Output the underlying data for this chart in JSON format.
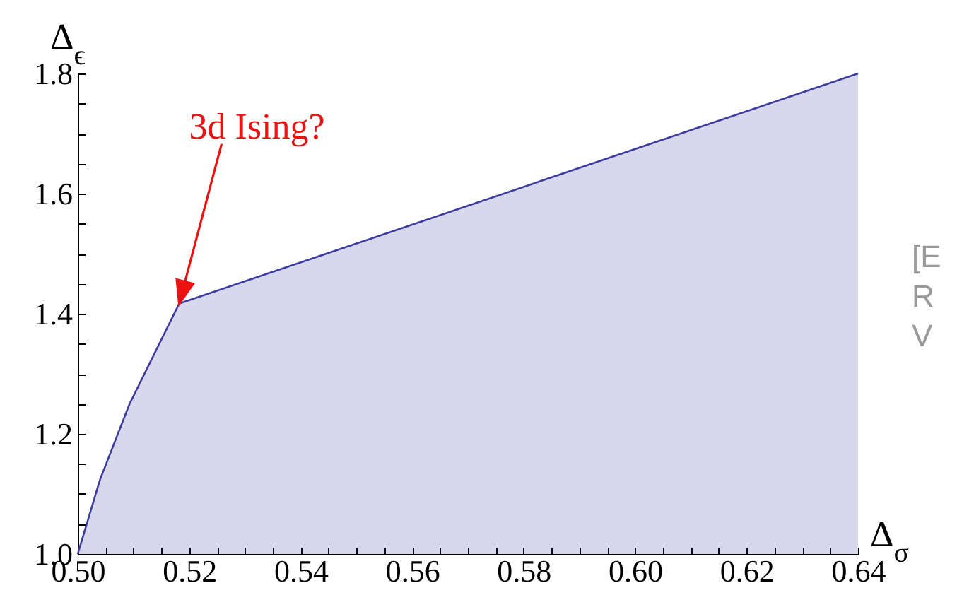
{
  "chart_data": {
    "type": "area",
    "xlabel": "Δ$_{σ}$",
    "ylabel": "Δ$_{ϵ}$",
    "x": [
      0.5,
      0.504,
      0.5093,
      0.5182,
      0.64
    ],
    "series": [
      {
        "color": "#3c3ca0",
        "values": [
          1.0,
          1.124,
          1.25,
          1.417,
          1.8
        ]
      }
    ],
    "xlim": [
      0.5,
      0.64
    ],
    "ylim": [
      1.0,
      1.8
    ],
    "xticks": [
      {
        "value": 0.5,
        "label": "0.50"
      },
      {
        "value": 0.505,
        "label": null
      },
      {
        "value": 0.51,
        "label": null
      },
      {
        "value": 0.515,
        "label": null
      },
      {
        "value": 0.52,
        "label": "0.52"
      },
      {
        "value": 0.525,
        "label": null
      },
      {
        "value": 0.53,
        "label": null
      },
      {
        "value": 0.535,
        "label": null
      },
      {
        "value": 0.54,
        "label": "0.54"
      },
      {
        "value": 0.545,
        "label": null
      },
      {
        "value": 0.55,
        "label": null
      },
      {
        "value": 0.555,
        "label": null
      },
      {
        "value": 0.56,
        "label": "0.56"
      },
      {
        "value": 0.565,
        "label": null
      },
      {
        "value": 0.57,
        "label": null
      },
      {
        "value": 0.575,
        "label": null
      },
      {
        "value": 0.58,
        "label": "0.58"
      },
      {
        "value": 0.585,
        "label": null
      },
      {
        "value": 0.59,
        "label": null
      },
      {
        "value": 0.595,
        "label": null
      },
      {
        "value": 0.6,
        "label": "0.60"
      },
      {
        "value": 0.605,
        "label": null
      },
      {
        "value": 0.61,
        "label": null
      },
      {
        "value": 0.615,
        "label": null
      },
      {
        "value": 0.62,
        "label": "0.62"
      },
      {
        "value": 0.625,
        "label": null
      },
      {
        "value": 0.63,
        "label": null
      },
      {
        "value": 0.635,
        "label": null
      },
      {
        "value": 0.64,
        "label": "0.64"
      }
    ],
    "yticks": [
      {
        "value": 1.0,
        "label": "1.0"
      },
      {
        "value": 1.05,
        "label": null
      },
      {
        "value": 1.1,
        "label": null
      },
      {
        "value": 1.15,
        "label": null
      },
      {
        "value": 1.2,
        "label": "1.2"
      },
      {
        "value": 1.25,
        "label": null
      },
      {
        "value": 1.3,
        "label": null
      },
      {
        "value": 1.35,
        "label": null
      },
      {
        "value": 1.4,
        "label": "1.4"
      },
      {
        "value": 1.45,
        "label": null
      },
      {
        "value": 1.5,
        "label": null
      },
      {
        "value": 1.55,
        "label": null
      },
      {
        "value": 1.6,
        "label": "1.6"
      },
      {
        "value": 1.65,
        "label": null
      },
      {
        "value": 1.7,
        "label": null
      },
      {
        "value": 1.75,
        "label": null
      },
      {
        "value": 1.8,
        "label": "1.8"
      }
    ],
    "grid": false,
    "annotations": [
      "3d Ising?",
      "[E",
      "R",
      "V"
    ]
  }
}
